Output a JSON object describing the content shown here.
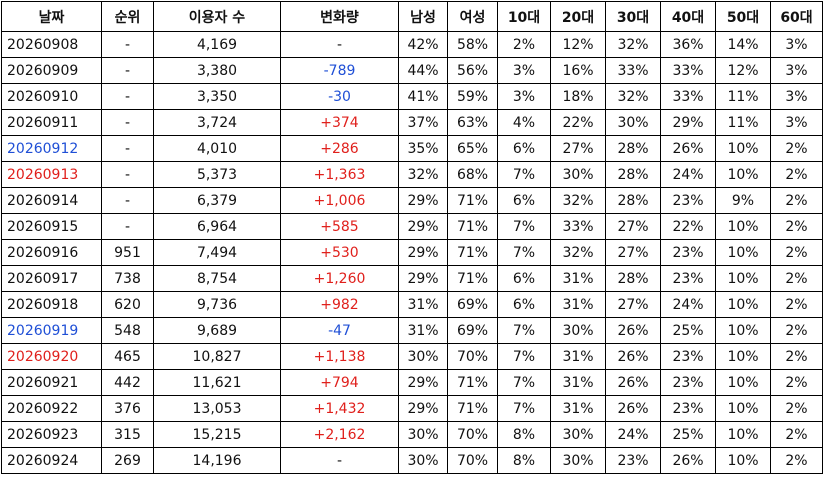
{
  "table": {
    "header": [
      "날짜",
      "순위",
      "이용자 수",
      "변화량",
      "남성",
      "여성",
      "10대",
      "20대",
      "30대",
      "40대",
      "50대",
      "60대"
    ],
    "rows": [
      [
        "20260908",
        "-",
        "4,169",
        "-",
        "42%",
        "58%",
        "2%",
        "12%",
        "32%",
        "36%",
        "14%",
        "3%"
      ],
      [
        "20260909",
        "-",
        "3,380",
        "-789",
        "44%",
        "56%",
        "3%",
        "16%",
        "33%",
        "33%",
        "12%",
        "3%"
      ],
      [
        "20260910",
        "-",
        "3,350",
        "-30",
        "41%",
        "59%",
        "3%",
        "18%",
        "32%",
        "33%",
        "11%",
        "3%"
      ],
      [
        "20260911",
        "-",
        "3,724",
        "+374",
        "37%",
        "63%",
        "4%",
        "22%",
        "30%",
        "29%",
        "11%",
        "3%"
      ],
      [
        "20260912",
        "-",
        "4,010",
        "+286",
        "35%",
        "65%",
        "6%",
        "27%",
        "28%",
        "26%",
        "10%",
        "2%"
      ],
      [
        "20260913",
        "-",
        "5,373",
        "+1,363",
        "32%",
        "68%",
        "7%",
        "30%",
        "28%",
        "24%",
        "10%",
        "2%"
      ],
      [
        "20260914",
        "-",
        "6,379",
        "+1,006",
        "29%",
        "71%",
        "6%",
        "32%",
        "28%",
        "23%",
        "9%",
        "2%"
      ],
      [
        "20260915",
        "-",
        "6,964",
        "+585",
        "29%",
        "71%",
        "7%",
        "33%",
        "27%",
        "22%",
        "10%",
        "2%"
      ],
      [
        "20260916",
        "951",
        "7,494",
        "+530",
        "29%",
        "71%",
        "7%",
        "32%",
        "27%",
        "23%",
        "10%",
        "2%"
      ],
      [
        "20260917",
        "738",
        "8,754",
        "+1,260",
        "29%",
        "71%",
        "6%",
        "31%",
        "28%",
        "23%",
        "10%",
        "2%"
      ],
      [
        "20260918",
        "620",
        "9,736",
        "+982",
        "31%",
        "69%",
        "6%",
        "31%",
        "27%",
        "24%",
        "10%",
        "2%"
      ],
      [
        "20260919",
        "548",
        "9,689",
        "-47",
        "31%",
        "69%",
        "7%",
        "30%",
        "26%",
        "25%",
        "10%",
        "2%"
      ],
      [
        "20260920",
        "465",
        "10,827",
        "+1,138",
        "30%",
        "70%",
        "7%",
        "31%",
        "26%",
        "23%",
        "10%",
        "2%"
      ],
      [
        "20260921",
        "442",
        "11,621",
        "+794",
        "29%",
        "71%",
        "7%",
        "31%",
        "26%",
        "23%",
        "10%",
        "2%"
      ],
      [
        "20260922",
        "376",
        "13,053",
        "+1,432",
        "29%",
        "71%",
        "7%",
        "31%",
        "26%",
        "23%",
        "10%",
        "2%"
      ],
      [
        "20260923",
        "315",
        "15,215",
        "+2,162",
        "30%",
        "70%",
        "8%",
        "30%",
        "24%",
        "25%",
        "10%",
        "2%"
      ],
      [
        "20260924",
        "269",
        "14,196",
        "-",
        "30%",
        "70%",
        "8%",
        "30%",
        "23%",
        "26%",
        "10%",
        "2%"
      ]
    ]
  }
}
